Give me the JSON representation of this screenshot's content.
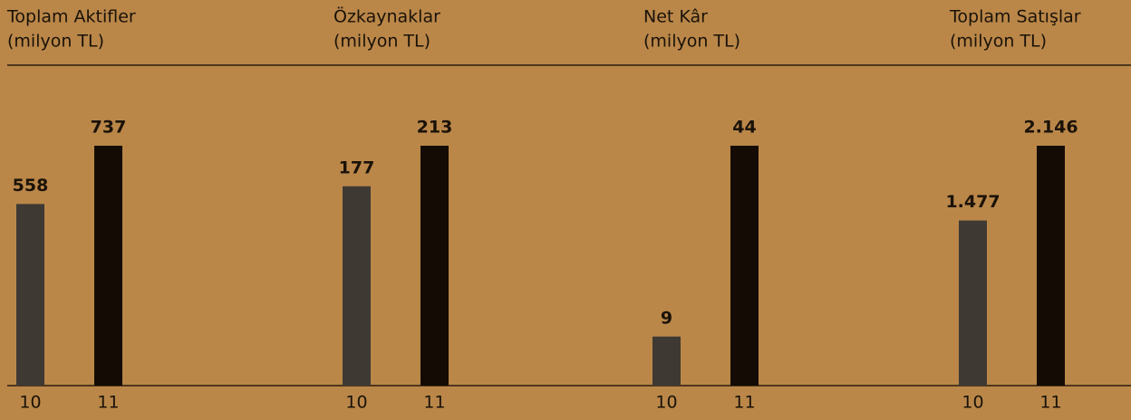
{
  "chart_data": [
    {
      "type": "bar",
      "title": "Toplam Aktifler",
      "subtitle": "(milyon TL)",
      "categories": [
        "10",
        "11"
      ],
      "values": [
        558,
        737
      ],
      "colors": [
        "#3e3a33",
        "#140c04"
      ],
      "ylim": [
        0,
        737
      ]
    },
    {
      "type": "bar",
      "title": "Özkaynaklar",
      "subtitle": "(milyon TL)",
      "categories": [
        "10",
        "11"
      ],
      "values": [
        177,
        213
      ],
      "colors": [
        "#3e3a33",
        "#140c04"
      ],
      "ylim": [
        0,
        213
      ]
    },
    {
      "type": "bar",
      "title": "Net Kâr",
      "subtitle": "(milyon TL)",
      "categories": [
        "10",
        "11"
      ],
      "values": [
        9,
        44
      ],
      "colors": [
        "#3e3a33",
        "#140c04"
      ],
      "ylim": [
        0,
        44
      ]
    },
    {
      "type": "bar",
      "title": "Toplam Satışlar",
      "subtitle": "(milyon TL)",
      "categories": [
        "10",
        "11"
      ],
      "values": [
        1477,
        2146
      ],
      "value_labels": [
        "1.477",
        "2.146"
      ],
      "colors": [
        "#3e3a33",
        "#140c04"
      ],
      "ylim": [
        0,
        2146
      ]
    }
  ]
}
